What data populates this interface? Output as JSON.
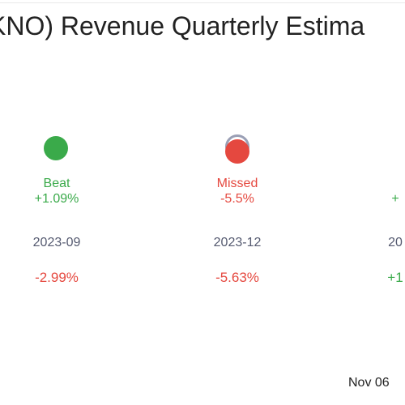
{
  "colors": {
    "beat": "#3aaa4a",
    "missed": "#e5483f",
    "period": "#555a70",
    "ring": "#9a9fb5",
    "title": "#222222"
  },
  "chart_data": {
    "type": "scatter",
    "title": "KNO) Revenue Quarterly Estima",
    "columns": [
      {
        "period": "2023-09",
        "status": "Beat",
        "surprise": "+1.09%",
        "change": "-2.99%",
        "status_color": "#3aaa4a",
        "change_color": "#e5483f",
        "has_estimate_ring": false
      },
      {
        "period": "2023-12",
        "status": "Missed",
        "surprise": "-5.5%",
        "change": "-5.63%",
        "status_color": "#e5483f",
        "change_color": "#e5483f",
        "has_estimate_ring": true
      },
      {
        "period": "20",
        "status": "",
        "surprise": "+",
        "change": "+1",
        "status_color": "#3aaa4a",
        "change_color": "#3aaa4a",
        "has_estimate_ring": false
      }
    ]
  },
  "footer": {
    "date": "Nov 06"
  }
}
